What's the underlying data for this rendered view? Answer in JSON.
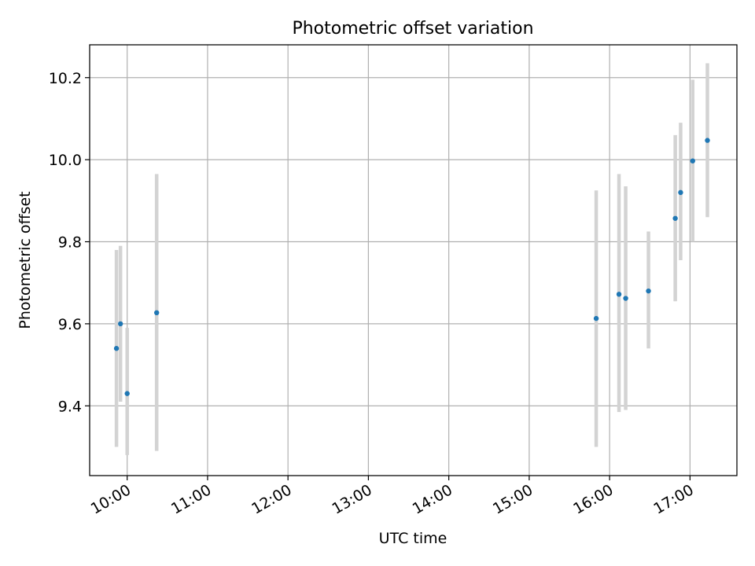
{
  "chart_data": {
    "type": "scatter",
    "title": "Photometric offset variation",
    "xlabel": "UTC time",
    "ylabel": "Photometric offset",
    "x_axis_kind": "time",
    "xlim": [
      "09:32",
      "17:35"
    ],
    "ylim": [
      9.23,
      10.28
    ],
    "grid": true,
    "x_ticks": [
      "10:00",
      "11:00",
      "12:00",
      "13:00",
      "14:00",
      "15:00",
      "16:00",
      "17:00"
    ],
    "y_ticks": [
      9.4,
      9.6,
      9.8,
      10.0,
      10.2
    ],
    "y_tick_labels": [
      "9.4",
      "9.6",
      "9.8",
      "10.0",
      "10.2"
    ],
    "colors": {
      "point": "#1f77b4",
      "errorbar": "#d3d3d3",
      "grid": "#b0b0b0",
      "axes": "#000000"
    },
    "points": [
      {
        "time": "09:52",
        "y": 9.54,
        "yerr_low": 9.3,
        "yerr_high": 9.78
      },
      {
        "time": "09:55",
        "y": 9.6,
        "yerr_low": 9.41,
        "yerr_high": 9.79
      },
      {
        "time": "10:00",
        "y": 9.43,
        "yerr_low": 9.28,
        "yerr_high": 9.59
      },
      {
        "time": "10:22",
        "y": 9.627,
        "yerr_low": 9.29,
        "yerr_high": 9.965
      },
      {
        "time": "15:50",
        "y": 9.613,
        "yerr_low": 9.3,
        "yerr_high": 9.925
      },
      {
        "time": "16:07",
        "y": 9.672,
        "yerr_low": 9.385,
        "yerr_high": 9.965
      },
      {
        "time": "16:12",
        "y": 9.662,
        "yerr_low": 9.39,
        "yerr_high": 9.935
      },
      {
        "time": "16:29",
        "y": 9.68,
        "yerr_low": 9.54,
        "yerr_high": 9.825
      },
      {
        "time": "16:49",
        "y": 9.857,
        "yerr_low": 9.655,
        "yerr_high": 10.06
      },
      {
        "time": "16:53",
        "y": 9.92,
        "yerr_low": 9.755,
        "yerr_high": 10.09
      },
      {
        "time": "17:02",
        "y": 9.997,
        "yerr_low": 9.8,
        "yerr_high": 10.195
      },
      {
        "time": "17:13",
        "y": 10.047,
        "yerr_low": 9.86,
        "yerr_high": 10.235
      }
    ]
  }
}
